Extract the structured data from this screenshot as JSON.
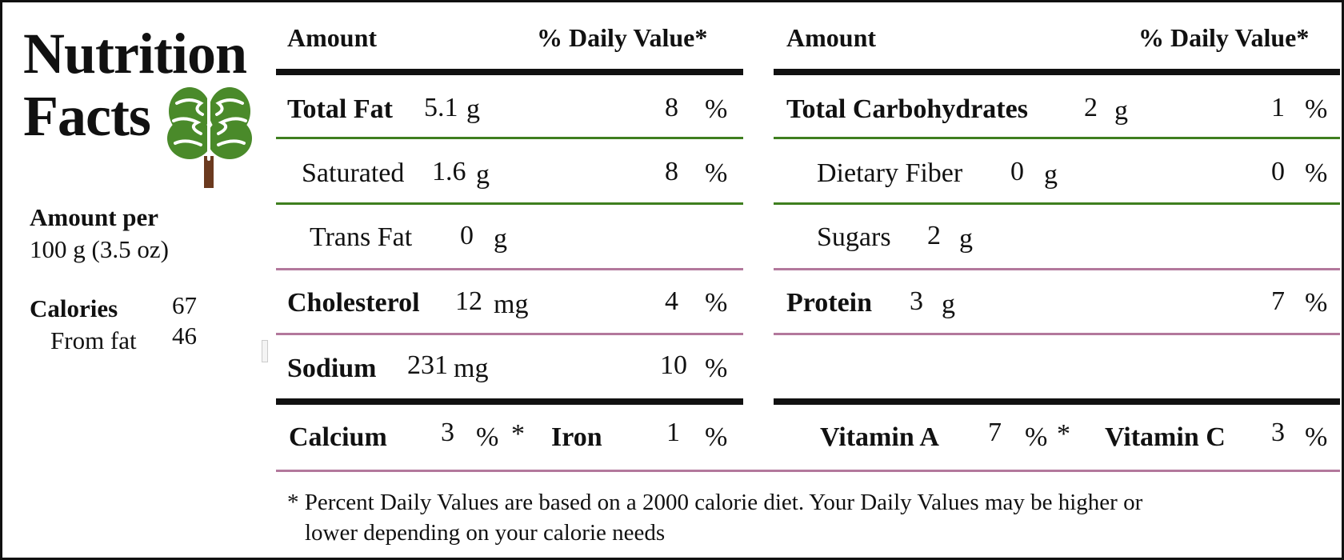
{
  "brand": {
    "line1": "Nutrition",
    "line2": "Facts",
    "logo_icon": "brain-tree-icon",
    "logo_colors": {
      "canopy": "#4a8a2a",
      "trunk": "#6b3a1f"
    }
  },
  "serving": {
    "label": "Amount per",
    "size": "100 g (3.5 oz)"
  },
  "calories": {
    "label": "Calories",
    "value": "67",
    "from_fat_label": "From fat",
    "from_fat_value": "46"
  },
  "headers": {
    "amount": "Amount",
    "daily_value": "% Daily Value*"
  },
  "left_rows": [
    {
      "label": "Total Fat",
      "amount": "5.1",
      "unit": "g",
      "dv": "8",
      "pct": "%"
    },
    {
      "label": "Saturated",
      "amount": "1.6",
      "unit": "g",
      "dv": "8",
      "pct": "%"
    },
    {
      "label": "Trans Fat",
      "amount": "0",
      "unit": "g",
      "dv": "",
      "pct": ""
    },
    {
      "label": "Cholesterol",
      "amount": "12",
      "unit": "mg",
      "dv": "4",
      "pct": "%"
    },
    {
      "label": "Sodium",
      "amount": "231",
      "unit": "mg",
      "dv": "10",
      "pct": "%"
    }
  ],
  "right_rows": [
    {
      "label": "Total Carbohydrates",
      "amount": "2",
      "unit": "g",
      "dv": "1",
      "pct": "%"
    },
    {
      "label": "Dietary Fiber",
      "amount": "0",
      "unit": "g",
      "dv": "0",
      "pct": "%"
    },
    {
      "label": "Sugars",
      "amount": "2",
      "unit": "g",
      "dv": "",
      "pct": ""
    },
    {
      "label": "Protein",
      "amount": "3",
      "unit": "g",
      "dv": "7",
      "pct": "%"
    }
  ],
  "vitamins": [
    {
      "label": "Calcium",
      "value": "3",
      "pct": "%",
      "star": "*"
    },
    {
      "label": "Iron",
      "value": "1",
      "pct": "%",
      "star": ""
    },
    {
      "label": "Vitamin A",
      "value": "7",
      "pct": "%",
      "star": "*"
    },
    {
      "label": "Vitamin C",
      "value": "3",
      "pct": "%",
      "star": ""
    }
  ],
  "footnote": {
    "line1": "* Percent Daily Values are based on a 2000 calorie diet. Your Daily Values may be higher or",
    "line2": "lower depending on your calorie needs"
  }
}
